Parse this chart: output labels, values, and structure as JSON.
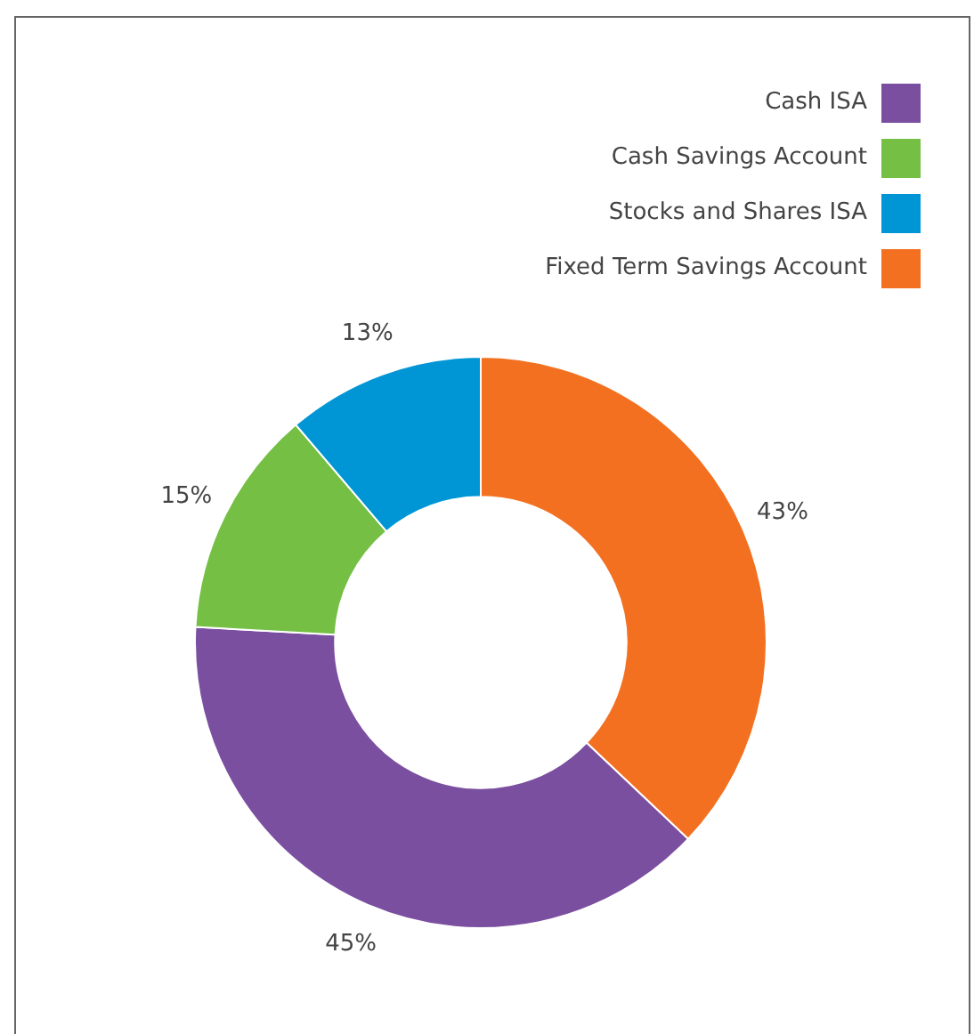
{
  "chart_data": {
    "type": "donut",
    "categories": [
      "Cash ISA",
      "Cash Savings Account",
      "Stocks and Shares ISA",
      "Fixed Term Savings Account"
    ],
    "values": [
      45,
      15,
      13,
      43
    ],
    "colors": [
      "#7b4fa0",
      "#74bf44",
      "#0096d6",
      "#f37021"
    ],
    "value_labels": [
      "45%",
      "15%",
      "13%",
      "43%"
    ],
    "legend": "top right"
  }
}
